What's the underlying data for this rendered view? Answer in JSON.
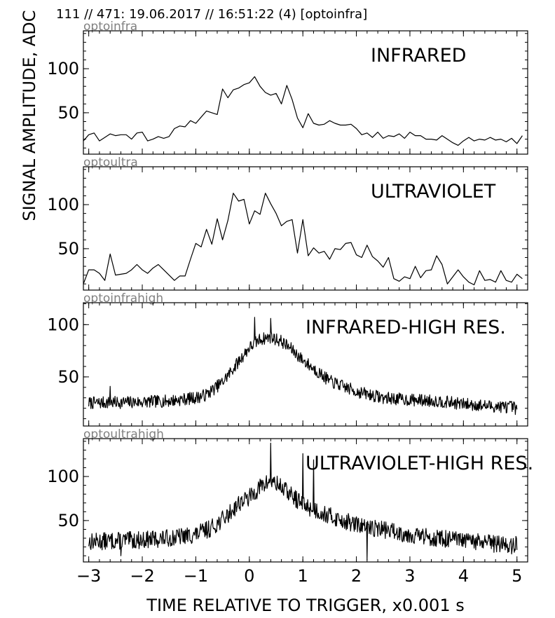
{
  "header": "111 // 471:   19.06.2017 // 16:51:22 (4)  [optoinfra]",
  "ylabel": "SIGNAL AMPLITUDE,  ADC",
  "xlabel": "TIME RELATIVE TO TRIGGER,   x0.001 s",
  "colors": {
    "trace": "#000000",
    "channel_label": "#808080",
    "axis": "#000000"
  },
  "chart_data": [
    {
      "type": "line",
      "channel": "optoinfra",
      "title": "INFRARED",
      "xlim": [
        -3.1,
        5.2
      ],
      "ylim": [
        3,
        143
      ],
      "xticks": [
        -3,
        -2,
        -1,
        0,
        1,
        2,
        3,
        4,
        5
      ],
      "yticks": [
        50,
        100
      ],
      "x": [
        -3.1,
        -3.0,
        -2.9,
        -2.8,
        -2.7,
        -2.6,
        -2.5,
        -2.4,
        -2.3,
        -2.2,
        -2.1,
        -2.0,
        -1.9,
        -1.8,
        -1.7,
        -1.6,
        -1.5,
        -1.4,
        -1.3,
        -1.2,
        -1.1,
        -1.0,
        -0.9,
        -0.8,
        -0.7,
        -0.6,
        -0.5,
        -0.4,
        -0.3,
        -0.2,
        -0.1,
        0.0,
        0.1,
        0.2,
        0.3,
        0.4,
        0.5,
        0.6,
        0.7,
        0.8,
        0.9,
        1.0,
        1.1,
        1.2,
        1.3,
        1.4,
        1.5,
        1.6,
        1.7,
        1.8,
        1.9,
        2.0,
        2.1,
        2.2,
        2.3,
        2.4,
        2.5,
        2.6,
        2.7,
        2.8,
        2.9,
        3.0,
        3.1,
        3.2,
        3.3,
        3.4,
        3.5,
        3.6,
        3.7,
        3.8,
        3.9,
        4.0,
        4.1,
        4.2,
        4.3,
        4.4,
        4.5,
        4.6,
        4.7,
        4.8,
        4.9,
        5.0,
        5.1
      ],
      "values": [
        18,
        25,
        27,
        18,
        22,
        26,
        24,
        25,
        25,
        20,
        27,
        28,
        18,
        20,
        23,
        21,
        23,
        32,
        35,
        34,
        41,
        38,
        45,
        52,
        50,
        48,
        77,
        67,
        76,
        78,
        82,
        84,
        91,
        80,
        73,
        70,
        72,
        60,
        81,
        65,
        44,
        33,
        49,
        38,
        36,
        37,
        41,
        38,
        36,
        36,
        37,
        32,
        25,
        27,
        22,
        28,
        21,
        24,
        23,
        26,
        21,
        28,
        24,
        24,
        20,
        20,
        19,
        24,
        20,
        16,
        13,
        18,
        22,
        18,
        20,
        19,
        22,
        19,
        20,
        17,
        21,
        15,
        24
      ]
    },
    {
      "type": "line",
      "channel": "optoultra",
      "title": "ULTRAVIOLET",
      "xlim": [
        -3.1,
        5.2
      ],
      "ylim": [
        3,
        143
      ],
      "xticks": [
        -3,
        -2,
        -1,
        0,
        1,
        2,
        3,
        4,
        5
      ],
      "yticks": [
        50,
        100
      ],
      "x": [
        -3.1,
        -3.0,
        -2.9,
        -2.8,
        -2.7,
        -2.6,
        -2.5,
        -2.4,
        -2.3,
        -2.2,
        -2.1,
        -2.0,
        -1.9,
        -1.8,
        -1.7,
        -1.6,
        -1.5,
        -1.4,
        -1.3,
        -1.2,
        -1.1,
        -1.0,
        -0.9,
        -0.8,
        -0.7,
        -0.6,
        -0.5,
        -0.4,
        -0.3,
        -0.2,
        -0.1,
        0.0,
        0.1,
        0.2,
        0.3,
        0.4,
        0.5,
        0.6,
        0.7,
        0.8,
        0.9,
        1.0,
        1.1,
        1.2,
        1.3,
        1.4,
        1.5,
        1.6,
        1.7,
        1.8,
        1.9,
        2.0,
        2.1,
        2.2,
        2.3,
        2.4,
        2.5,
        2.6,
        2.7,
        2.8,
        2.9,
        3.0,
        3.1,
        3.2,
        3.3,
        3.4,
        3.5,
        3.6,
        3.7,
        3.8,
        3.9,
        4.0,
        4.1,
        4.2,
        4.3,
        4.4,
        4.5,
        4.6,
        4.7,
        4.8,
        4.9,
        5.0,
        5.1
      ],
      "values": [
        10,
        26,
        26,
        22,
        14,
        44,
        20,
        21,
        22,
        26,
        32,
        26,
        22,
        28,
        32,
        26,
        20,
        14,
        19,
        19,
        38,
        56,
        52,
        72,
        55,
        84,
        60,
        82,
        113,
        104,
        106,
        78,
        93,
        89,
        113,
        101,
        90,
        76,
        81,
        83,
        45,
        83,
        42,
        51,
        45,
        47,
        38,
        50,
        49,
        56,
        57,
        43,
        40,
        54,
        41,
        36,
        29,
        40,
        16,
        13,
        18,
        16,
        30,
        17,
        25,
        26,
        42,
        32,
        10,
        18,
        26,
        18,
        12,
        9,
        25,
        14,
        15,
        12,
        25,
        14,
        12,
        21,
        16
      ]
    },
    {
      "type": "line",
      "channel": "optoinfrahigh",
      "title": "INFRARED-HIGH RES.",
      "xlim": [
        -3.1,
        5.2
      ],
      "ylim": [
        3,
        121
      ],
      "xticks": [
        -3,
        -2,
        -1,
        0,
        1,
        2,
        3,
        4,
        5
      ],
      "yticks": [
        50,
        100
      ],
      "x_start": -3.0,
      "x_step": 0.01,
      "noise_amp": 6,
      "seed": 7,
      "envelope_x": [
        -3.0,
        -2.0,
        -1.5,
        -1.0,
        -0.8,
        -0.5,
        -0.3,
        0.0,
        0.2,
        0.4,
        0.6,
        0.8,
        1.0,
        1.5,
        2.0,
        2.5,
        3.0,
        3.5,
        4.0,
        4.5,
        5.0
      ],
      "envelope_y": [
        25,
        26,
        27,
        30,
        33,
        45,
        58,
        78,
        86,
        88,
        84,
        76,
        66,
        46,
        36,
        30,
        28,
        27,
        24,
        22,
        21
      ],
      "spikes_x": [
        -2.6,
        0.1,
        0.4,
        4.97
      ],
      "spikes_y": [
        41,
        107,
        106,
        14
      ]
    },
    {
      "type": "line",
      "channel": "optoultrahigh",
      "title": "ULTRAVIOLET-HIGH RES.",
      "xlim": [
        -3.1,
        5.2
      ],
      "ylim": [
        3,
        143
      ],
      "xticks": [
        -3,
        -2,
        -1,
        0,
        1,
        2,
        3,
        4,
        5
      ],
      "yticks": [
        50,
        100
      ],
      "x_start": -3.0,
      "x_step": 0.01,
      "noise_amp": 10,
      "seed": 13,
      "envelope_x": [
        -3.0,
        -2.0,
        -1.5,
        -1.0,
        -0.7,
        -0.4,
        -0.2,
        0.0,
        0.2,
        0.4,
        0.6,
        0.8,
        1.0,
        1.5,
        2.0,
        2.5,
        3.0,
        3.5,
        4.0,
        4.5,
        5.0
      ],
      "envelope_y": [
        26,
        28,
        30,
        34,
        42,
        56,
        70,
        76,
        88,
        95,
        88,
        78,
        68,
        55,
        45,
        40,
        34,
        30,
        27,
        24,
        22
      ],
      "spikes_x": [
        -2.4,
        0.4,
        1.0,
        1.2,
        2.2,
        4.9
      ],
      "spikes_y": [
        10,
        138,
        126,
        119,
        5,
        12
      ]
    }
  ]
}
